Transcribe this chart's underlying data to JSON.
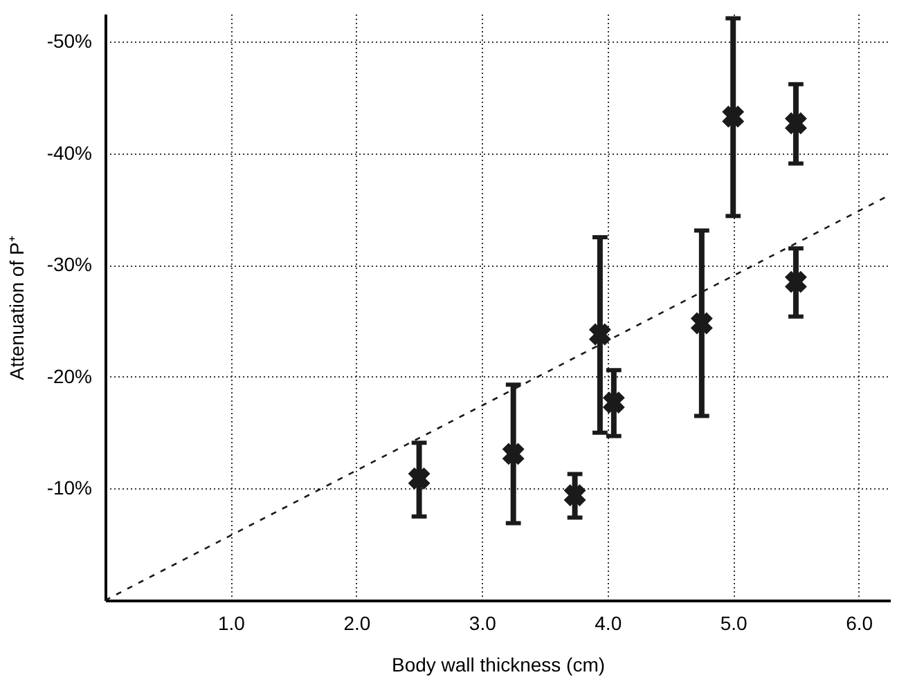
{
  "chart_data": {
    "type": "scatter",
    "xlabel": "Body wall thickness (cm)",
    "ylabel": "Attenuation of P⁺",
    "xlim": [
      0,
      6.25
    ],
    "ylim": [
      0,
      -52.5
    ],
    "xticks": [
      {
        "value": 1,
        "label": "1.0"
      },
      {
        "value": 2,
        "label": "2.0"
      },
      {
        "value": 3,
        "label": "3.0"
      },
      {
        "value": 4,
        "label": "4.0"
      },
      {
        "value": 5,
        "label": "5.0"
      },
      {
        "value": 6,
        "label": "6.0"
      }
    ],
    "yticks": [
      {
        "value": -10,
        "label": "-10%"
      },
      {
        "value": -20,
        "label": "-20%"
      },
      {
        "value": -30,
        "label": "-30%"
      },
      {
        "value": -40,
        "label": "-40%"
      },
      {
        "value": -50,
        "label": "-50%"
      }
    ],
    "grid": true,
    "series": [
      {
        "color": "#1a1a1a",
        "marker": "cross",
        "x": [
          2.5,
          3.25,
          3.74,
          3.94,
          4.05,
          4.75,
          5.0,
          5.5,
          5.5
        ],
        "values": [
          -10.9,
          -13.1,
          -9.4,
          -23.8,
          -17.7,
          -24.8,
          -43.3,
          -42.7,
          -28.5
        ],
        "errors": [
          [
            -14.1,
            -7.5
          ],
          [
            -19.3,
            -6.9
          ],
          [
            -11.3,
            -7.4
          ],
          [
            -32.5,
            -15.0
          ],
          [
            -20.6,
            -14.7
          ],
          [
            -33.1,
            -16.5
          ],
          [
            -52.1,
            -34.4
          ],
          [
            -46.2,
            -39.1
          ],
          [
            -31.5,
            -25.4
          ]
        ]
      },
      {
        "type": "line",
        "color": "#1a1a1a",
        "line_style": "dashed",
        "x": [
          0,
          6.25
        ],
        "values": [
          0,
          -36.3
        ]
      }
    ]
  }
}
